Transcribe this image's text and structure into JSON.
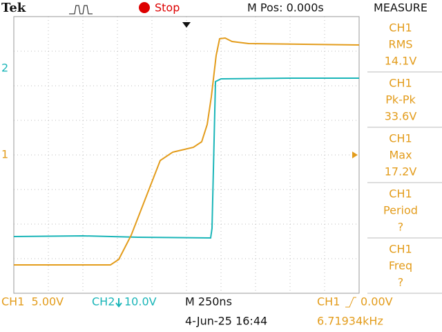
{
  "header": {
    "brand": "Tek",
    "state": "Stop",
    "position": "M Pos: 0.000s",
    "panel_title": "MEASURE"
  },
  "markers": {
    "ch2": "2",
    "ch1": "1"
  },
  "measurements": [
    {
      "channel": "CH1",
      "name": "RMS",
      "value": "14.1V"
    },
    {
      "channel": "CH1",
      "name": "Pk-Pk",
      "value": "33.6V"
    },
    {
      "channel": "CH1",
      "name": "Max",
      "value": "17.2V"
    },
    {
      "channel": "CH1",
      "name": "Period",
      "value": "?"
    },
    {
      "channel": "CH1",
      "name": "Freq",
      "value": "?"
    }
  ],
  "footer": {
    "ch1_scale": "CH1  5.00V",
    "ch2_label": "CH2",
    "ch2_scale": "10.0V",
    "timebase": "M 250ns",
    "trigger_source": "CH1",
    "trigger_level": "0.00V",
    "date": "4-Jun-25 16:44",
    "frequency": "6.71934kHz"
  }
}
